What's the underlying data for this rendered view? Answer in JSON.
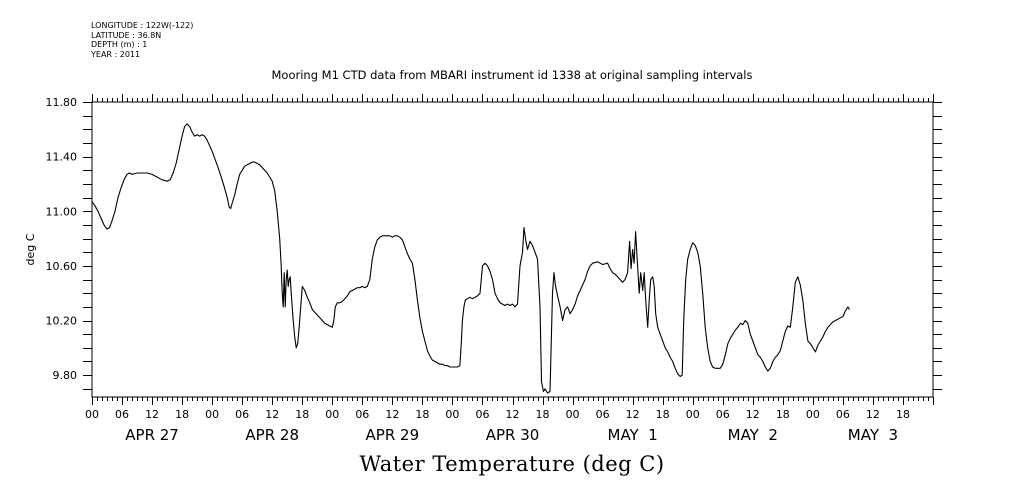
{
  "meta_lines": [
    "LONGITUDE : 122W(-122)",
    "LATITUDE : 36.8N",
    "DEPTH (m) : 1",
    "YEAR : 2011"
  ],
  "chart_data": {
    "type": "line",
    "title": "Mooring M1 CTD data from MBARI instrument id 1338 at original sampling intervals",
    "xlabel": "Water Temperature (deg C)",
    "ylabel": "deg C",
    "ylim": [
      9.64,
      11.8
    ],
    "xlim_hours": [
      0,
      168
    ],
    "y_ticks": [
      "11.80",
      "11.40",
      "11.00",
      "10.60",
      "10.20",
      "9.80"
    ],
    "x_tick_hours": [
      "00",
      "06",
      "12",
      "18"
    ],
    "date_labels": [
      "APR 27",
      "APR 28",
      "APR 29",
      "APR 30",
      "MAY  1",
      "MAY  2",
      "MAY  3"
    ],
    "series": [
      {
        "points": [
          [
            0,
            11.07
          ],
          [
            0.6,
            11.04
          ],
          [
            1.2,
            11.0
          ],
          [
            1.8,
            10.95
          ],
          [
            2.4,
            10.9
          ],
          [
            3,
            10.87
          ],
          [
            3.5,
            10.88
          ],
          [
            4,
            10.93
          ],
          [
            4.6,
            11.0
          ],
          [
            5.2,
            11.1
          ],
          [
            5.8,
            11.17
          ],
          [
            6.4,
            11.23
          ],
          [
            7,
            11.27
          ],
          [
            7.5,
            11.28
          ],
          [
            8,
            11.27
          ],
          [
            9,
            11.28
          ],
          [
            10,
            11.28
          ],
          [
            11,
            11.28
          ],
          [
            12,
            11.27
          ],
          [
            13,
            11.25
          ],
          [
            14,
            11.23
          ],
          [
            15,
            11.22
          ],
          [
            15.6,
            11.23
          ],
          [
            16.2,
            11.28
          ],
          [
            16.8,
            11.35
          ],
          [
            17.4,
            11.45
          ],
          [
            18,
            11.55
          ],
          [
            18.5,
            11.62
          ],
          [
            19,
            11.64
          ],
          [
            19.5,
            11.62
          ],
          [
            20,
            11.58
          ],
          [
            20.5,
            11.55
          ],
          [
            21,
            11.56
          ],
          [
            21.5,
            11.55
          ],
          [
            22,
            11.56
          ],
          [
            22.5,
            11.55
          ],
          [
            23,
            11.52
          ],
          [
            23.5,
            11.48
          ],
          [
            24,
            11.44
          ],
          [
            24.6,
            11.38
          ],
          [
            25.2,
            11.32
          ],
          [
            25.8,
            11.25
          ],
          [
            26.4,
            11.18
          ],
          [
            27,
            11.1
          ],
          [
            27.4,
            11.03
          ],
          [
            27.7,
            11.02
          ],
          [
            28,
            11.06
          ],
          [
            28.5,
            11.12
          ],
          [
            29,
            11.2
          ],
          [
            29.5,
            11.27
          ],
          [
            30,
            11.3
          ],
          [
            30.5,
            11.33
          ],
          [
            31,
            11.34
          ],
          [
            31.5,
            11.35
          ],
          [
            32,
            11.36
          ],
          [
            32.5,
            11.36
          ],
          [
            33,
            11.35
          ],
          [
            33.5,
            11.34
          ],
          [
            34,
            11.32
          ],
          [
            34.5,
            11.3
          ],
          [
            35,
            11.28
          ],
          [
            35.5,
            11.25
          ],
          [
            36,
            11.22
          ],
          [
            36.5,
            11.15
          ],
          [
            37,
            11.0
          ],
          [
            37.5,
            10.8
          ],
          [
            37.8,
            10.6
          ],
          [
            38.0,
            10.4
          ],
          [
            38.2,
            10.3
          ],
          [
            38.4,
            10.55
          ],
          [
            38.6,
            10.3
          ],
          [
            38.8,
            10.5
          ],
          [
            39.0,
            10.57
          ],
          [
            39.2,
            10.45
          ],
          [
            39.4,
            10.5
          ],
          [
            39.6,
            10.52
          ],
          [
            39.8,
            10.4
          ],
          [
            40.0,
            10.3
          ],
          [
            40.2,
            10.2
          ],
          [
            40.5,
            10.08
          ],
          [
            40.8,
            10.0
          ],
          [
            41.1,
            10.03
          ],
          [
            41.4,
            10.15
          ],
          [
            41.7,
            10.3
          ],
          [
            42,
            10.45
          ],
          [
            42.5,
            10.42
          ],
          [
            43,
            10.37
          ],
          [
            43.5,
            10.33
          ],
          [
            44,
            10.28
          ],
          [
            44.5,
            10.26
          ],
          [
            45,
            10.24
          ],
          [
            45.5,
            10.22
          ],
          [
            46,
            10.2
          ],
          [
            46.5,
            10.18
          ],
          [
            47,
            10.17
          ],
          [
            47.5,
            10.16
          ],
          [
            48,
            10.15
          ],
          [
            48.3,
            10.2
          ],
          [
            48.6,
            10.3
          ],
          [
            49,
            10.33
          ],
          [
            49.5,
            10.33
          ],
          [
            50,
            10.34
          ],
          [
            50.5,
            10.36
          ],
          [
            51,
            10.38
          ],
          [
            51.5,
            10.41
          ],
          [
            52,
            10.42
          ],
          [
            52.5,
            10.43
          ],
          [
            53,
            10.44
          ],
          [
            53.5,
            10.44
          ],
          [
            54,
            10.45
          ],
          [
            54.5,
            10.44
          ],
          [
            55,
            10.45
          ],
          [
            55.5,
            10.5
          ],
          [
            56,
            10.65
          ],
          [
            56.5,
            10.74
          ],
          [
            57,
            10.79
          ],
          [
            57.5,
            10.81
          ],
          [
            58,
            10.82
          ],
          [
            58.5,
            10.82
          ],
          [
            59,
            10.82
          ],
          [
            59.5,
            10.82
          ],
          [
            60,
            10.81
          ],
          [
            60.5,
            10.82
          ],
          [
            61,
            10.82
          ],
          [
            61.5,
            10.81
          ],
          [
            62,
            10.79
          ],
          [
            62.5,
            10.74
          ],
          [
            63,
            10.69
          ],
          [
            63.5,
            10.65
          ],
          [
            64,
            10.62
          ],
          [
            64.5,
            10.5
          ],
          [
            65,
            10.35
          ],
          [
            65.5,
            10.22
          ],
          [
            66,
            10.12
          ],
          [
            66.5,
            10.05
          ],
          [
            67,
            9.98
          ],
          [
            67.5,
            9.94
          ],
          [
            68,
            9.91
          ],
          [
            68.5,
            9.9
          ],
          [
            69,
            9.89
          ],
          [
            69.5,
            9.88
          ],
          [
            70,
            9.88
          ],
          [
            70.5,
            9.87
          ],
          [
            71,
            9.87
          ],
          [
            71.5,
            9.86
          ],
          [
            72,
            9.86
          ],
          [
            72.5,
            9.86
          ],
          [
            73,
            9.86
          ],
          [
            73.5,
            9.87
          ],
          [
            73.8,
            10.05
          ],
          [
            74,
            10.2
          ],
          [
            74.3,
            10.3
          ],
          [
            74.6,
            10.35
          ],
          [
            75,
            10.36
          ],
          [
            75.5,
            10.37
          ],
          [
            76,
            10.36
          ],
          [
            76.5,
            10.37
          ],
          [
            77,
            10.38
          ],
          [
            77.5,
            10.4
          ],
          [
            78,
            10.6
          ],
          [
            78.5,
            10.62
          ],
          [
            79,
            10.6
          ],
          [
            79.5,
            10.56
          ],
          [
            80,
            10.5
          ],
          [
            80.5,
            10.4
          ],
          [
            81,
            10.36
          ],
          [
            81.5,
            10.33
          ],
          [
            82,
            10.32
          ],
          [
            82.5,
            10.31
          ],
          [
            83,
            10.32
          ],
          [
            83.5,
            10.31
          ],
          [
            84,
            10.32
          ],
          [
            84.5,
            10.3
          ],
          [
            85,
            10.32
          ],
          [
            85.5,
            10.6
          ],
          [
            86,
            10.7
          ],
          [
            86.3,
            10.88
          ],
          [
            86.6,
            10.8
          ],
          [
            87,
            10.72
          ],
          [
            87.5,
            10.78
          ],
          [
            88,
            10.75
          ],
          [
            88.5,
            10.7
          ],
          [
            89,
            10.65
          ],
          [
            89.5,
            10.3
          ],
          [
            89.8,
            9.75
          ],
          [
            90.2,
            9.68
          ],
          [
            90.5,
            9.7
          ],
          [
            91,
            9.67
          ],
          [
            91.5,
            9.68
          ],
          [
            92,
            10.4
          ],
          [
            92.3,
            10.55
          ],
          [
            92.6,
            10.45
          ],
          [
            93,
            10.38
          ],
          [
            93.5,
            10.3
          ],
          [
            94,
            10.2
          ],
          [
            94.5,
            10.28
          ],
          [
            95,
            10.3
          ],
          [
            95.5,
            10.25
          ],
          [
            96,
            10.28
          ],
          [
            96.5,
            10.32
          ],
          [
            97,
            10.38
          ],
          [
            97.5,
            10.42
          ],
          [
            98,
            10.46
          ],
          [
            98.5,
            10.5
          ],
          [
            99,
            10.56
          ],
          [
            99.5,
            10.6
          ],
          [
            100,
            10.62
          ],
          [
            101,
            10.63
          ],
          [
            102,
            10.61
          ],
          [
            103,
            10.62
          ],
          [
            103.5,
            10.58
          ],
          [
            104,
            10.55
          ],
          [
            104.5,
            10.54
          ],
          [
            105,
            10.52
          ],
          [
            105.5,
            10.5
          ],
          [
            106,
            10.48
          ],
          [
            106.5,
            10.5
          ],
          [
            107,
            10.55
          ],
          [
            107.4,
            10.78
          ],
          [
            107.7,
            10.58
          ],
          [
            108,
            10.72
          ],
          [
            108.3,
            10.62
          ],
          [
            108.6,
            10.85
          ],
          [
            109,
            10.6
          ],
          [
            109.3,
            10.4
          ],
          [
            109.6,
            10.55
          ],
          [
            110,
            10.42
          ],
          [
            110.3,
            10.55
          ],
          [
            110.6,
            10.35
          ],
          [
            111,
            10.15
          ],
          [
            111.3,
            10.35
          ],
          [
            111.6,
            10.5
          ],
          [
            112,
            10.52
          ],
          [
            112.3,
            10.45
          ],
          [
            112.6,
            10.25
          ],
          [
            113,
            10.15
          ],
          [
            113.5,
            10.1
          ],
          [
            114,
            10.05
          ],
          [
            114.5,
            10.0
          ],
          [
            115,
            9.97
          ],
          [
            115.5,
            9.93
          ],
          [
            116,
            9.9
          ],
          [
            116.5,
            9.85
          ],
          [
            117,
            9.81
          ],
          [
            117.5,
            9.79
          ],
          [
            117.9,
            9.8
          ],
          [
            118.2,
            10.2
          ],
          [
            118.6,
            10.5
          ],
          [
            119,
            10.65
          ],
          [
            119.5,
            10.72
          ],
          [
            120,
            10.77
          ],
          [
            120.5,
            10.75
          ],
          [
            121,
            10.7
          ],
          [
            121.5,
            10.6
          ],
          [
            122,
            10.4
          ],
          [
            122.5,
            10.15
          ],
          [
            123,
            10.0
          ],
          [
            123.5,
            9.9
          ],
          [
            124,
            9.86
          ],
          [
            124.5,
            9.85
          ],
          [
            125,
            9.85
          ],
          [
            125.5,
            9.85
          ],
          [
            126,
            9.88
          ],
          [
            126.5,
            9.95
          ],
          [
            127,
            10.03
          ],
          [
            127.5,
            10.07
          ],
          [
            128,
            10.1
          ],
          [
            128.5,
            10.13
          ],
          [
            129,
            10.15
          ],
          [
            129.5,
            10.18
          ],
          [
            130,
            10.17
          ],
          [
            130.5,
            10.2
          ],
          [
            131,
            10.18
          ],
          [
            131.5,
            10.1
          ],
          [
            132,
            10.05
          ],
          [
            132.5,
            10.0
          ],
          [
            133,
            9.95
          ],
          [
            133.5,
            9.93
          ],
          [
            134,
            9.9
          ],
          [
            134.5,
            9.86
          ],
          [
            135,
            9.83
          ],
          [
            135.5,
            9.85
          ],
          [
            136,
            9.9
          ],
          [
            136.5,
            9.93
          ],
          [
            137,
            9.95
          ],
          [
            137.5,
            9.98
          ],
          [
            138,
            10.05
          ],
          [
            138.5,
            10.12
          ],
          [
            139,
            10.16
          ],
          [
            139.5,
            10.15
          ],
          [
            140,
            10.3
          ],
          [
            140.5,
            10.48
          ],
          [
            141,
            10.52
          ],
          [
            141.5,
            10.46
          ],
          [
            142,
            10.35
          ],
          [
            142.5,
            10.18
          ],
          [
            143,
            10.05
          ],
          [
            143.5,
            10.03
          ],
          [
            144,
            10.0
          ],
          [
            144.5,
            9.97
          ],
          [
            145,
            10.02
          ],
          [
            145.5,
            10.05
          ],
          [
            146,
            10.08
          ],
          [
            146.5,
            10.12
          ],
          [
            147,
            10.15
          ],
          [
            147.5,
            10.17
          ],
          [
            148,
            10.19
          ],
          [
            148.5,
            10.2
          ],
          [
            149,
            10.21
          ],
          [
            149.5,
            10.22
          ],
          [
            150,
            10.23
          ],
          [
            150.5,
            10.27
          ],
          [
            151,
            10.3
          ],
          [
            151.3,
            10.28
          ]
        ]
      }
    ]
  }
}
